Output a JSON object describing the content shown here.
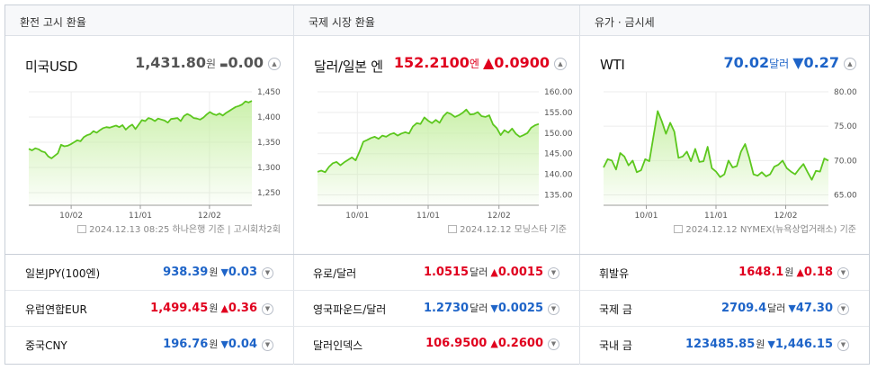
{
  "panels": [
    {
      "header": "환전 고시 환율",
      "name": "미국USD",
      "price": "1,431.80",
      "unit": "원",
      "direction": "flat",
      "arrow": "▬",
      "change": "0.00",
      "source": "2024.12.13 08:25 하나은행 기준 | 고시회차2회",
      "chart_data": {
        "type": "area",
        "title": "",
        "ylim": [
          1225,
          1450
        ],
        "y_ticks": [
          "1,450",
          "1,400",
          "1,350",
          "1,300",
          "1,250"
        ],
        "y_tick_values": [
          1450,
          1400,
          1350,
          1300,
          1250
        ],
        "x_ticks": [
          "10/02",
          "11/01",
          "12/02"
        ],
        "x_tick_positions": [
          0.19,
          0.5,
          0.81
        ],
        "line_color": "#5cc71e",
        "fill_color": "#c9f0a8",
        "values": [
          1337,
          1334,
          1338,
          1336,
          1332,
          1330,
          1322,
          1318,
          1323,
          1328,
          1345,
          1342,
          1343,
          1346,
          1350,
          1354,
          1352,
          1360,
          1364,
          1366,
          1372,
          1369,
          1374,
          1378,
          1380,
          1379,
          1381,
          1383,
          1380,
          1384,
          1375,
          1381,
          1385,
          1376,
          1385,
          1394,
          1392,
          1398,
          1396,
          1392,
          1397,
          1395,
          1393,
          1389,
          1396,
          1397,
          1398,
          1392,
          1402,
          1406,
          1403,
          1398,
          1397,
          1395,
          1399,
          1405,
          1410,
          1406,
          1404,
          1407,
          1403,
          1408,
          1412,
          1416,
          1420,
          1422,
          1425,
          1431,
          1429,
          1432
        ]
      }
    },
    {
      "header": "국제 시장 환율",
      "name": "달러/일본 엔",
      "price": "152.2100",
      "unit": "엔",
      "direction": "up",
      "arrow": "▲",
      "change": "0.0900",
      "source": "2024.12.12 모닝스타 기준",
      "chart_data": {
        "type": "area",
        "title": "",
        "ylim": [
          132.5,
          160
        ],
        "y_ticks": [
          "160.00",
          "155.00",
          "150.00",
          "145.00",
          "140.00",
          "135.00"
        ],
        "y_tick_values": [
          160,
          155,
          150,
          145,
          140,
          135
        ],
        "x_ticks": [
          "10/01",
          "11/01",
          "12/02"
        ],
        "x_tick_positions": [
          0.18,
          0.5,
          0.82
        ],
        "line_color": "#5cc71e",
        "fill_color": "#c9f0a8",
        "values": [
          140.6,
          140.9,
          140.5,
          141.8,
          142.7,
          143.0,
          142.2,
          142.9,
          143.5,
          144.1,
          143.4,
          145.5,
          147.9,
          148.3,
          148.8,
          149.1,
          148.6,
          149.4,
          149.1,
          149.7,
          150.0,
          149.4,
          149.9,
          150.2,
          149.9,
          151.6,
          152.4,
          152.2,
          153.8,
          153.0,
          152.4,
          153.2,
          152.5,
          154.1,
          155.0,
          154.6,
          153.9,
          154.3,
          154.9,
          155.7,
          154.5,
          154.6,
          155.1,
          154.1,
          153.9,
          154.3,
          152.1,
          151.2,
          149.5,
          150.7,
          150.1,
          151.1,
          149.8,
          149.1,
          149.5,
          150.0,
          151.3,
          151.9,
          152.2
        ]
      }
    },
    {
      "header": "유가 · 금시세",
      "name": "WTI",
      "price": "70.02",
      "unit": "달러",
      "direction": "down",
      "arrow": "▼",
      "change": "0.27",
      "source": "2024.12.12 NYMEX(뉴욕상업거래소) 기준",
      "chart_data": {
        "type": "area",
        "title": "",
        "ylim": [
          63.5,
          80
        ],
        "y_ticks": [
          "80.00",
          "75.00",
          "70.00",
          "65.00"
        ],
        "y_tick_values": [
          80,
          75,
          70,
          65
        ],
        "x_ticks": [
          "10/01",
          "11/01",
          "12/02"
        ],
        "x_tick_positions": [
          0.19,
          0.5,
          0.81
        ],
        "line_color": "#5cc71e",
        "fill_color": "#c9f0a8",
        "values": [
          69.0,
          70.2,
          70.0,
          68.7,
          71.1,
          70.6,
          69.3,
          70.0,
          68.3,
          68.6,
          70.2,
          69.9,
          73.6,
          77.2,
          75.7,
          73.9,
          75.5,
          74.2,
          70.4,
          70.6,
          71.3,
          69.9,
          71.7,
          69.8,
          69.9,
          72.0,
          68.9,
          68.4,
          67.6,
          68.0,
          70.0,
          69.0,
          69.2,
          71.3,
          72.4,
          70.4,
          68.0,
          67.8,
          68.3,
          67.7,
          68.0,
          69.1,
          69.4,
          70.0,
          68.9,
          68.4,
          68.0,
          68.8,
          69.5,
          68.3,
          67.2,
          68.5,
          68.4,
          70.3,
          70.0
        ]
      }
    }
  ],
  "rows": [
    [
      {
        "label": "일본JPY(100엔)",
        "value": "938.39",
        "unit": "원",
        "direction": "down",
        "arrow": "▼",
        "change": "0.03"
      },
      {
        "label": "유럽연합EUR",
        "value": "1,499.45",
        "unit": "원",
        "direction": "up",
        "arrow": "▲",
        "change": "0.36"
      },
      {
        "label": "중국CNY",
        "value": "196.76",
        "unit": "원",
        "direction": "down",
        "arrow": "▼",
        "change": "0.04"
      }
    ],
    [
      {
        "label": "유로/달러",
        "value": "1.0515",
        "unit": "달러",
        "direction": "up",
        "arrow": "▲",
        "change": "0.0015"
      },
      {
        "label": "영국파운드/달러",
        "value": "1.2730",
        "unit": "달러",
        "direction": "down",
        "arrow": "▼",
        "change": "0.0025"
      },
      {
        "label": "달러인덱스",
        "value": "106.9500",
        "unit": "",
        "direction": "up",
        "arrow": "▲",
        "change": "0.2600"
      }
    ],
    [
      {
        "label": "휘발유",
        "value": "1648.1",
        "unit": "원",
        "direction": "up",
        "arrow": "▲",
        "change": "0.18"
      },
      {
        "label": "국제 금",
        "value": "2709.4",
        "unit": "달러",
        "direction": "down",
        "arrow": "▼",
        "change": "47.30"
      },
      {
        "label": "국내 금",
        "value": "123485.85",
        "unit": "원",
        "direction": "down",
        "arrow": "▼",
        "change": "1,446.15"
      }
    ]
  ],
  "icons": {
    "expand": "chevron-up-icon",
    "more": "chevron-down-icon",
    "source": "document-icon"
  }
}
